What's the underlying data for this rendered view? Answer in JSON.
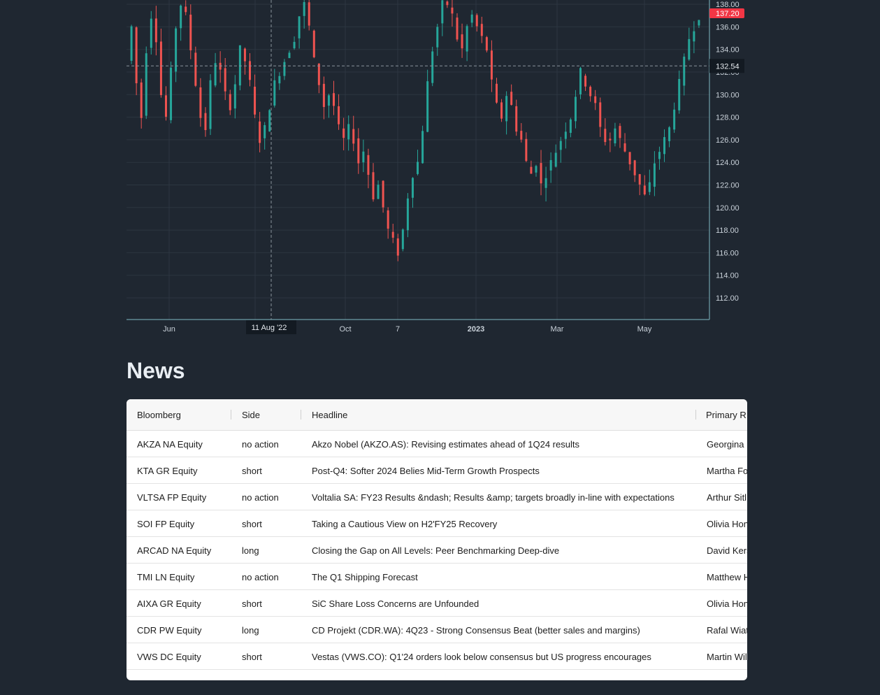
{
  "chart": {
    "price_tag": "137.20",
    "crosshair_price": "132.54",
    "crosshair_date": "11 Aug '22",
    "y_ticks": [
      "138.00",
      "136.00",
      "134.00",
      "132.00",
      "130.00",
      "128.00",
      "126.00",
      "124.00",
      "122.00",
      "120.00",
      "118.00",
      "116.00",
      "114.00",
      "112.00"
    ],
    "x_ticks": [
      "Jun",
      "Oct",
      "7",
      "2023",
      "Mar",
      "May"
    ],
    "colors": {
      "up": "#26a69a",
      "down": "#ef5350",
      "background": "#1f2731",
      "grid": "#2c3641",
      "axis_border": "#7fb9c4"
    }
  },
  "chart_data": {
    "type": "candlestick",
    "title": "",
    "x_axis": [
      "Jun",
      "Oct",
      "7",
      "2023",
      "Mar",
      "May"
    ],
    "y_axis_range": [
      111,
      138
    ],
    "series": [
      {
        "values": [
          133,
          136,
          131,
          128,
          134,
          137,
          135,
          130,
          128,
          132,
          136,
          138,
          137,
          134,
          131,
          128,
          127,
          131,
          133,
          132,
          130,
          129,
          131,
          134,
          133,
          131,
          128,
          126,
          127,
          129,
          131,
          132,
          133,
          134,
          135,
          137,
          138,
          136,
          133,
          131,
          129,
          130,
          129,
          127,
          126,
          127,
          126,
          124,
          125,
          123,
          121,
          122,
          120,
          118,
          117,
          116,
          118,
          121,
          123,
          124,
          127,
          131,
          134,
          136,
          138,
          138,
          137,
          135,
          134,
          136,
          137,
          136,
          135,
          134,
          131,
          129,
          128,
          130,
          129,
          127,
          126,
          124,
          123,
          124,
          122,
          123,
          124,
          125,
          126,
          127,
          128,
          130,
          132,
          131,
          130,
          129,
          127,
          126,
          126,
          127,
          126,
          125,
          124,
          123,
          122,
          121,
          122,
          124,
          125,
          126,
          127,
          129,
          131,
          133,
          135,
          136,
          137
        ]
      }
    ]
  },
  "news": {
    "title": "News",
    "columns": [
      "Bloomberg",
      "Side",
      "Headline",
      "Primary R"
    ],
    "rows": [
      {
        "bloomberg": "AKZA NA Equity",
        "side": "no action",
        "headline": "Akzo Nobel (AKZO.AS): Revising estimates ahead of 1Q24 results",
        "analyst": "Georgina I"
      },
      {
        "bloomberg": "KTA GR Equity",
        "side": "short",
        "headline": "Post-Q4: Softer 2024 Belies Mid-Term Growth Prospects",
        "analyst": "Martha Fo"
      },
      {
        "bloomberg": "VLTSA FP Equity",
        "side": "no action",
        "headline": "Voltalia SA: FY23 Results &ndash; Results &amp; targets broadly in-line with expectations",
        "analyst": "Arthur Sitl"
      },
      {
        "bloomberg": "SOI FP Equity",
        "side": "short",
        "headline": "Taking a Cautious View on H2'FY25 Recovery",
        "analyst": "Olivia Hon"
      },
      {
        "bloomberg": "ARCAD NA Equity",
        "side": "long",
        "headline": "Closing the Gap on All Levels: Peer Benchmarking Deep-dive",
        "analyst": "David Kers"
      },
      {
        "bloomberg": "TMI LN Equity",
        "side": "no action",
        "headline": "The Q1 Shipping Forecast",
        "analyst": "Matthew H"
      },
      {
        "bloomberg": "AIXA GR Equity",
        "side": "short",
        "headline": "SiC Share Loss Concerns are Unfounded",
        "analyst": "Olivia Hon"
      },
      {
        "bloomberg": "CDR PW Equity",
        "side": "long",
        "headline": "CD Projekt (CDR.WA): 4Q23 - Strong Consensus Beat (better sales and margins)",
        "analyst": "Rafal Wiat"
      },
      {
        "bloomberg": "VWS DC Equity",
        "side": "short",
        "headline": "Vestas (VWS.CO): Q1'24 orders look below consensus but US progress encourages",
        "analyst": "Martin Wil"
      }
    ]
  }
}
